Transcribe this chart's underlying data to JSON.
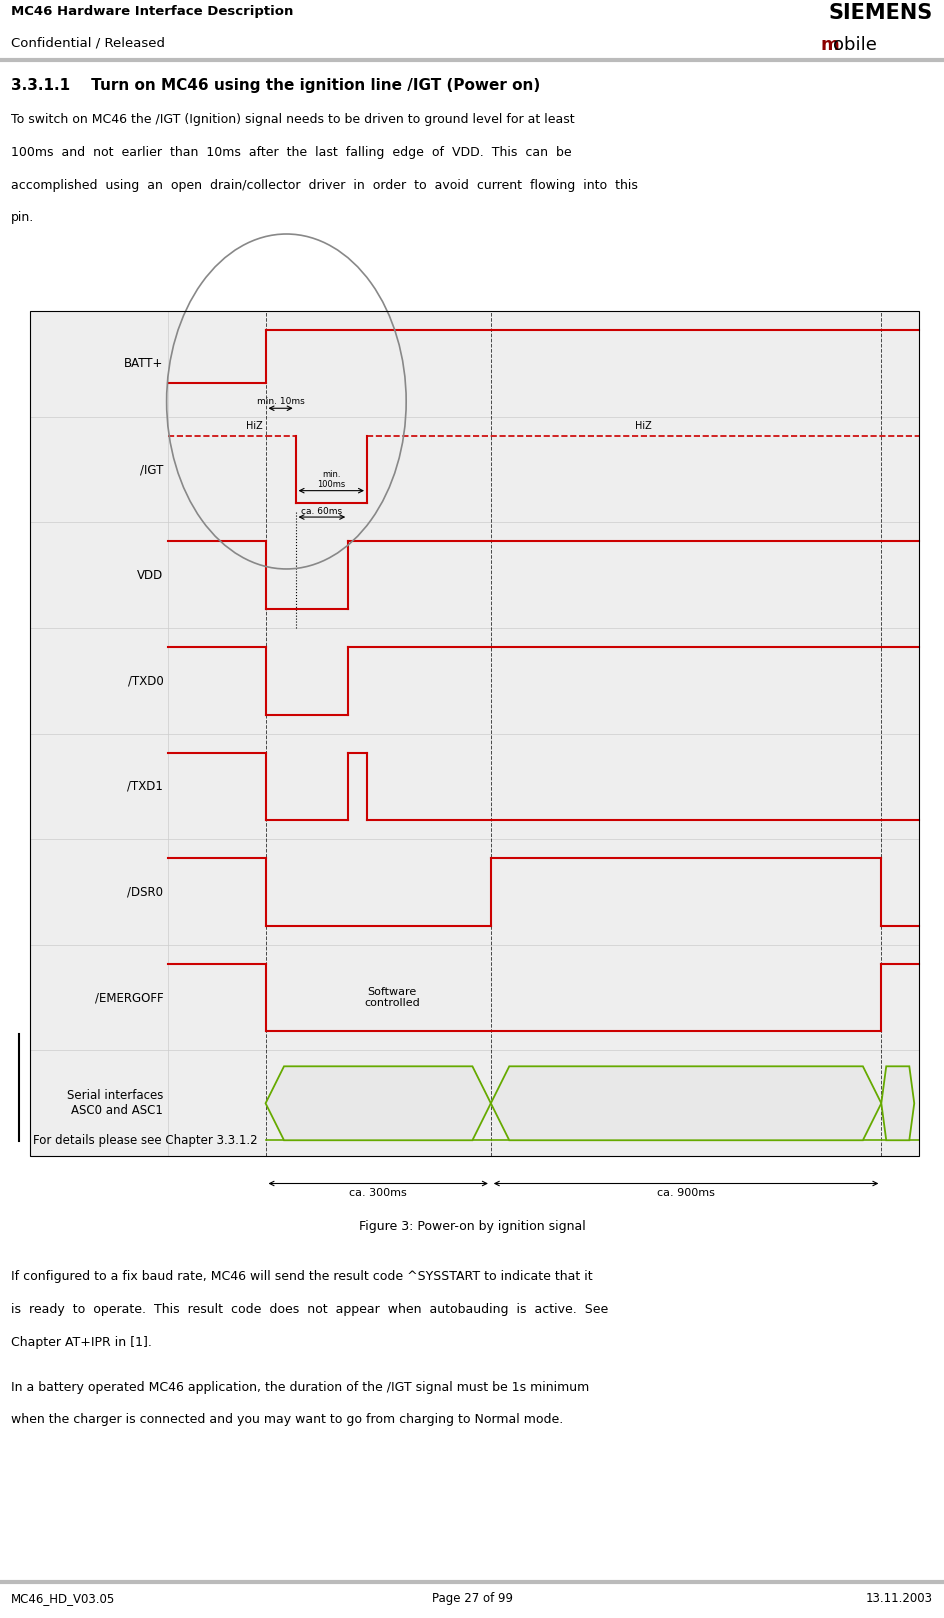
{
  "header_left_line1": "MC46 Hardware Interface Description",
  "header_left_line2": "Confidential / Released",
  "header_siemens": "SIEMENS",
  "header_m": "m",
  "header_obile": "obile",
  "footer_left": "MC46_HD_V03.05",
  "footer_center": "Page 27 of 99",
  "footer_right": "13.11.2003",
  "section_title": "3.3.1.1    Turn on MC46 using the ignition line /IGT (Power on)",
  "body1": [
    "To switch on MC46 the /IGT (Ignition) signal needs to be driven to ground level for at least",
    "100ms  and  not  earlier  than  10ms  after  the  last  falling  edge  of  VDD.  This  can  be",
    "accomplished  using  an  open  drain/collector  driver  in  order  to  avoid  current  flowing  into  this",
    "pin."
  ],
  "figure_caption": "Figure 3: Power-on by ignition signal",
  "footer_note": "For details please see Chapter 3.3.1.2",
  "body2": [
    "If configured to a fix baud rate, MC46 will send the result code ^SYSSTART to indicate that it",
    "is  ready  to  operate.  This  result  code  does  not  appear  when  autobauding  is  active.  See",
    "Chapter AT+IPR in [1]."
  ],
  "body3": [
    "In a battery operated MC46 application, the duration of the /IGT signal must be 1s minimum",
    "when the charger is connected and you may want to go from charging to Normal mode."
  ],
  "signal_labels": [
    "BATT+",
    "/IGT",
    "VDD",
    "/TXD0",
    "/TXD1",
    "/DSR0",
    "/EMERGOFF",
    "Serial interfaces\nASC0 and ASC1"
  ],
  "diagram_bg": "#eeeeee",
  "red_color": "#cc0000",
  "green_color": "#66aa00",
  "header_sep_color": "#bbbbbb",
  "footer_sep_color": "#bbbbbb"
}
